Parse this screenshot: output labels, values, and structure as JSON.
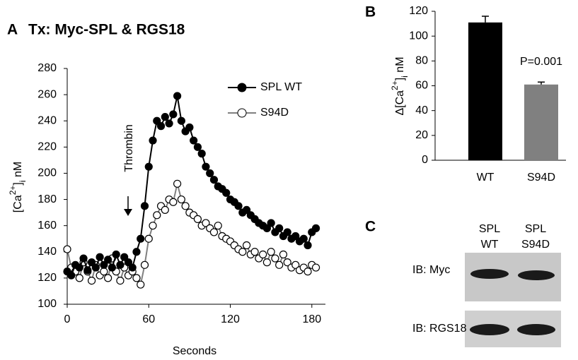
{
  "chart_data": [
    {
      "type": "line",
      "panel_label": "A",
      "title": "Tx: Myc-SPL & RGS18",
      "xlabel": "Seconds",
      "ylabel_parts": [
        "[Ca",
        "2+",
        "]",
        "i",
        " nM"
      ],
      "annotation": "Thrombin",
      "x": [
        0,
        3,
        6,
        9,
        12,
        15,
        18,
        21,
        24,
        27,
        30,
        33,
        36,
        39,
        42,
        45,
        48,
        51,
        54,
        57,
        60,
        63,
        66,
        69,
        72,
        75,
        78,
        81,
        84,
        87,
        90,
        93,
        96,
        99,
        102,
        105,
        108,
        111,
        114,
        117,
        120,
        123,
        126,
        129,
        132,
        135,
        138,
        141,
        144,
        147,
        150,
        153,
        156,
        159,
        162,
        165,
        168,
        171,
        174,
        177,
        180,
        183
      ],
      "series": [
        {
          "name": "SPL WT",
          "color": "#000000",
          "marker": "filled",
          "values": [
            125,
            122,
            130,
            128,
            135,
            126,
            132,
            128,
            136,
            130,
            134,
            128,
            138,
            130,
            136,
            132,
            128,
            140,
            150,
            175,
            205,
            225,
            240,
            236,
            243,
            238,
            245,
            259,
            240,
            232,
            235,
            225,
            220,
            215,
            205,
            200,
            195,
            190,
            188,
            185,
            180,
            178,
            175,
            170,
            172,
            168,
            165,
            162,
            160,
            158,
            162,
            155,
            158,
            152,
            155,
            150,
            152,
            148,
            150,
            145,
            155,
            158
          ]
        },
        {
          "name": "S94D",
          "color": "#808080",
          "marker": "open",
          "values": [
            142,
            128,
            125,
            120,
            132,
            125,
            118,
            130,
            122,
            125,
            120,
            135,
            125,
            118,
            128,
            122,
            125,
            120,
            115,
            130,
            150,
            160,
            168,
            175,
            172,
            180,
            178,
            192,
            180,
            175,
            170,
            168,
            165,
            160,
            162,
            158,
            155,
            160,
            152,
            150,
            148,
            145,
            142,
            140,
            145,
            138,
            140,
            135,
            138,
            132,
            140,
            135,
            130,
            138,
            132,
            128,
            130,
            126,
            128,
            125,
            130,
            128
          ]
        }
      ],
      "xlim": [
        0,
        190
      ],
      "xticks": [
        0,
        60,
        120,
        180
      ],
      "ylim": [
        100,
        280
      ],
      "yticks": [
        100,
        120,
        140,
        160,
        180,
        200,
        220,
        240,
        260,
        280
      ]
    },
    {
      "type": "bar",
      "panel_label": "B",
      "ylabel_parts": [
        "Δ[Ca",
        "2+",
        "]",
        "i",
        " nM"
      ],
      "annotation": "P=0.001",
      "categories": [
        "WT",
        "S94D"
      ],
      "values": [
        111,
        61
      ],
      "errors": [
        5,
        2
      ],
      "colors": [
        "#000000",
        "#808080"
      ],
      "ylim": [
        0,
        120
      ],
      "yticks": [
        0,
        20,
        40,
        60,
        80,
        100,
        120
      ]
    }
  ],
  "blot": {
    "panel_label": "C",
    "columns": [
      [
        "SPL",
        "WT"
      ],
      [
        "SPL",
        "S94D"
      ]
    ],
    "rows": [
      "IB: Myc",
      "IB: RGS18"
    ]
  }
}
